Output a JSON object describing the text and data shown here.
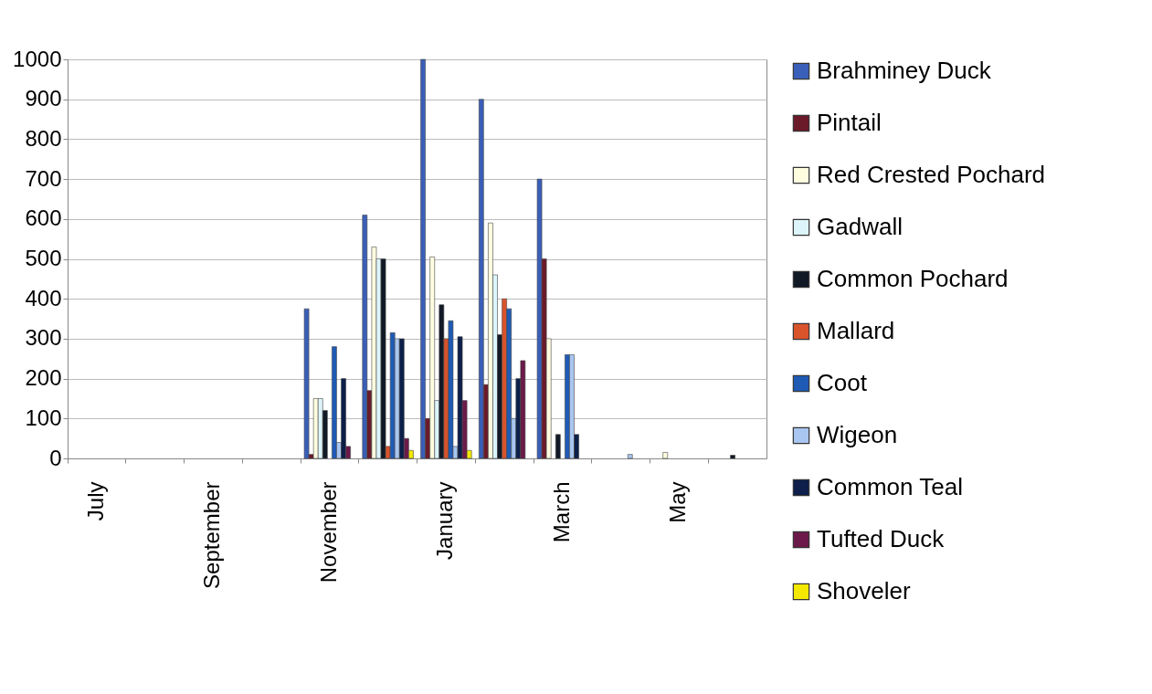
{
  "chart_data": {
    "type": "bar",
    "categories": [
      "July",
      null,
      "September",
      null,
      "November",
      null,
      "January",
      null,
      "March",
      null,
      "May",
      null
    ],
    "series": [
      {
        "name": "Brahminey Duck",
        "color": "#3a5fb8",
        "values": [
          0,
          0,
          0,
          0,
          375,
          610,
          1000,
          900,
          700,
          0,
          0,
          0
        ]
      },
      {
        "name": "Pintail",
        "color": "#6b1a2a",
        "values": [
          0,
          0,
          0,
          0,
          10,
          170,
          100,
          185,
          500,
          0,
          0,
          0
        ]
      },
      {
        "name": "Red Crested Pochard",
        "color": "#fffde0",
        "values": [
          0,
          0,
          0,
          0,
          150,
          530,
          505,
          590,
          300,
          0,
          15,
          0
        ]
      },
      {
        "name": "Gadwall",
        "color": "#ddf4fb",
        "values": [
          0,
          0,
          0,
          0,
          150,
          500,
          145,
          460,
          0,
          0,
          0,
          0
        ]
      },
      {
        "name": "Common Pochard",
        "color": "#111826",
        "values": [
          0,
          0,
          0,
          0,
          120,
          500,
          385,
          310,
          60,
          0,
          0,
          8
        ]
      },
      {
        "name": "Mallard",
        "color": "#d9532b",
        "values": [
          0,
          0,
          0,
          0,
          0,
          30,
          300,
          400,
          0,
          0,
          0,
          0
        ]
      },
      {
        "name": "Coot",
        "color": "#1f5bb5",
        "values": [
          0,
          0,
          0,
          0,
          280,
          315,
          345,
          375,
          260,
          0,
          0,
          0
        ]
      },
      {
        "name": "Wigeon",
        "color": "#a9c6f0",
        "values": [
          0,
          0,
          0,
          0,
          40,
          300,
          30,
          100,
          260,
          10,
          0,
          0
        ]
      },
      {
        "name": "Common Teal",
        "color": "#0d1f4a",
        "values": [
          0,
          0,
          0,
          0,
          200,
          300,
          305,
          200,
          60,
          0,
          0,
          0
        ]
      },
      {
        "name": "Tufted Duck",
        "color": "#6b1a4a",
        "values": [
          0,
          0,
          0,
          0,
          30,
          50,
          145,
          245,
          0,
          0,
          0,
          0
        ]
      },
      {
        "name": "Shoveler",
        "color": "#f5e800",
        "values": [
          0,
          0,
          0,
          0,
          0,
          20,
          20,
          0,
          0,
          0,
          0,
          0
        ]
      }
    ],
    "ylim": [
      0,
      1000
    ],
    "yticks": [
      0,
      100,
      200,
      300,
      400,
      500,
      600,
      700,
      800,
      900,
      {
        "value": 1000,
        "label": "1000"
      }
    ],
    "grid": "y",
    "legend": "right"
  }
}
